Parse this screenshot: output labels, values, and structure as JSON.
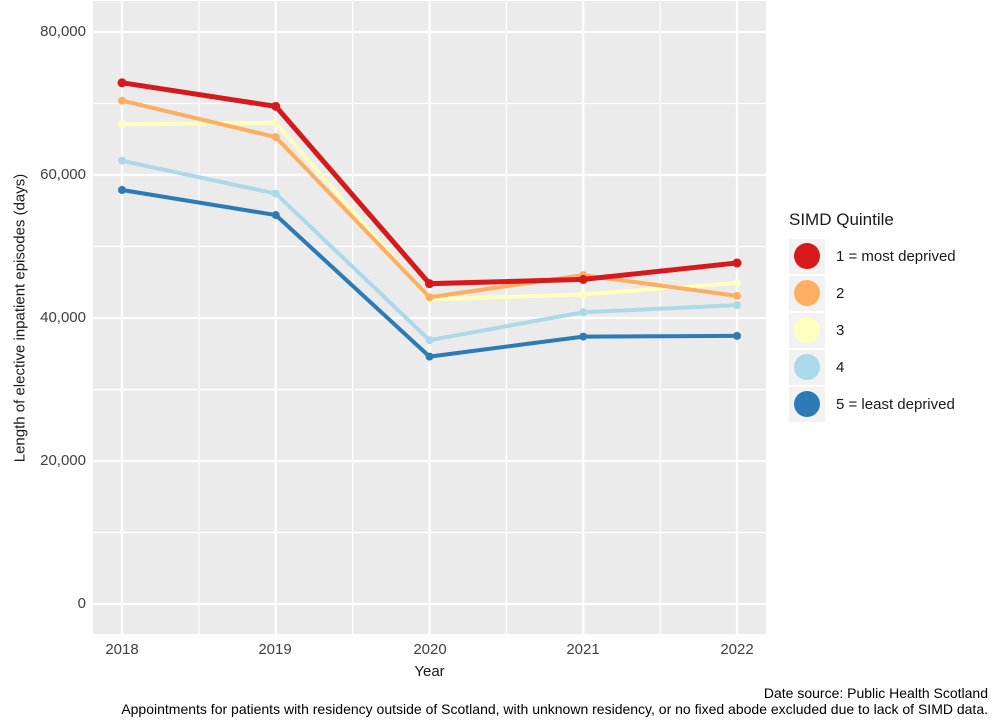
{
  "chart_data": {
    "type": "line",
    "title": "",
    "xlabel": "Year",
    "ylabel": "Length of elective inpatient episodes (days)",
    "x": [
      2018,
      2019,
      2020,
      2021,
      2022
    ],
    "xtick_labels": [
      "2018",
      "2019",
      "2020",
      "2021",
      "2022"
    ],
    "ytick_labels": [
      "0",
      "20,000",
      "40,000",
      "60,000",
      "80,000"
    ],
    "ytick_values": [
      0,
      20000,
      40000,
      60000,
      80000
    ],
    "minor_ytick_values": [
      10000,
      30000,
      50000,
      70000
    ],
    "ylim": [
      0,
      80000
    ],
    "grid": "white major and minor gridlines on grey panel",
    "legend_position": "right",
    "legend_title": "SIMD Quintile",
    "panel_bg": "#ebebeb",
    "grid_color": "#ffffff",
    "legend_key_bg": "#f2f2f2",
    "series": [
      {
        "name": "1 = most deprived",
        "color": "#d7191c",
        "values": [
          72900,
          69600,
          44800,
          45400,
          47700
        ]
      },
      {
        "name": "2",
        "color": "#fdae61",
        "values": [
          70400,
          65300,
          42900,
          46000,
          43100
        ]
      },
      {
        "name": "3",
        "color": "#ffffbf",
        "values": [
          67100,
          67300,
          42600,
          43300,
          44900
        ]
      },
      {
        "name": "4",
        "color": "#abd9e9",
        "values": [
          62000,
          57400,
          36900,
          40800,
          41800
        ]
      },
      {
        "name": "5 = least deprived",
        "color": "#2c7bb6",
        "values": [
          57900,
          54400,
          34600,
          37400,
          37500
        ]
      }
    ]
  },
  "footer": {
    "caption_line1": "Date source: Public Health Scotland",
    "caption_line2": "Appointments for patients with residency outside of Scotland, with unknown residency, or no fixed abode excluded due to lack of SIMD data."
  }
}
